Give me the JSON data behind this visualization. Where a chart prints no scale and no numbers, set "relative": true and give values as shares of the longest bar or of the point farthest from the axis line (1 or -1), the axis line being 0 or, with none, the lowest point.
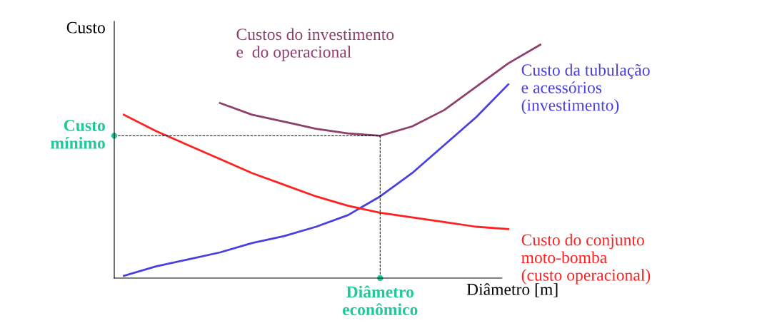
{
  "chart_data": {
    "type": "line",
    "relative": true,
    "xlabel": "Diâmetro [m]",
    "ylabel": "Custo",
    "categories": [
      null,
      null,
      null,
      null,
      null,
      null,
      null,
      null,
      null,
      null,
      null,
      null,
      null,
      null
    ],
    "series": [
      {
        "name": "Custos do investimento\ne  do operacional",
        "color": "#8e3f6e",
        "values": [
          null,
          null,
          null,
          0.75,
          0.7,
          0.67,
          0.64,
          0.62,
          0.61,
          0.65,
          0.72,
          0.82,
          0.92,
          1.0
        ]
      },
      {
        "name": "Custo da tubulação\ne acessórios\n(investimento)",
        "color": "#4a3fe0",
        "values": [
          0.01,
          0.05,
          0.08,
          0.11,
          0.15,
          0.18,
          0.22,
          0.27,
          0.35,
          0.45,
          0.57,
          0.69,
          0.83,
          null
        ]
      },
      {
        "name": "Custo do conjunto\nmoto-bomba\n(custo operacional)",
        "color": "#ff2020",
        "values": [
          0.7,
          0.63,
          0.57,
          0.51,
          0.45,
          0.4,
          0.35,
          0.31,
          0.28,
          0.26,
          0.24,
          0.22,
          0.21,
          null
        ]
      }
    ],
    "ref_lines": [
      {
        "axis": "y",
        "value": 0.61,
        "label": "Custo\nmínimo",
        "color": "#000000",
        "line_style": "dashed"
      }
    ],
    "annotations": [
      "Diâmetro\neconômico"
    ],
    "grid": false,
    "legend": false,
    "marker": "none",
    "line_style": "solid"
  }
}
